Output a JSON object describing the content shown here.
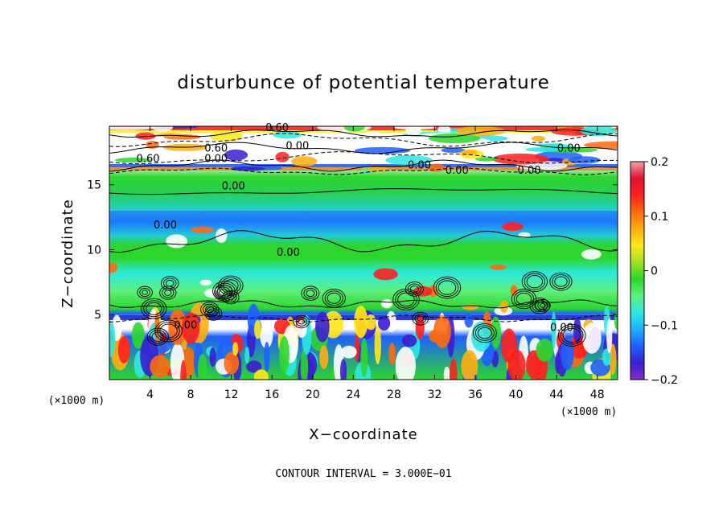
{
  "chart_data": {
    "type": "heatmap",
    "title": "disturbunce of potential temperature",
    "xlabel": "X−coordinate",
    "ylabel": "Z−coordinate",
    "x_unit_left": "(×1000 m)",
    "x_unit_right": "(×1000 m)",
    "xlim": [
      0,
      50
    ],
    "ylim": [
      0,
      19.5
    ],
    "x_ticks": [
      4,
      8,
      12,
      16,
      20,
      24,
      28,
      32,
      36,
      40,
      44,
      48
    ],
    "y_ticks": [
      5,
      10,
      15
    ],
    "colorbar": {
      "range": [
        -0.2,
        0.2
      ],
      "ticks": [
        {
          "value": 0.2,
          "label": "0.2"
        },
        {
          "value": 0.1,
          "label": "0.1"
        },
        {
          "value": 0,
          "label": "0"
        },
        {
          "value": -0.1,
          "label": "−0.1"
        },
        {
          "value": -0.2,
          "label": "−0.2"
        }
      ],
      "colors": [
        "#8a2bc8",
        "#3a1fd0",
        "#1e60ff",
        "#1fb0ff",
        "#2ce8e0",
        "#5ef07a",
        "#2cd62c",
        "#a0e020",
        "#ffe818",
        "#ffae10",
        "#ff6a10",
        "#ff2020",
        "#e01030",
        "#f4a0a8"
      ]
    },
    "contour_labels": [
      {
        "x": 16.5,
        "y": 19.2,
        "text": "0.60"
      },
      {
        "x": 18.5,
        "y": 17.8,
        "text": "0.00"
      },
      {
        "x": 10.5,
        "y": 17.6,
        "text": "0.60"
      },
      {
        "x": 10.5,
        "y": 16.8,
        "text": "0.00"
      },
      {
        "x": 3.8,
        "y": 16.8,
        "text": "0.60"
      },
      {
        "x": 45.2,
        "y": 17.6,
        "text": "0.00"
      },
      {
        "x": 30.5,
        "y": 16.3,
        "text": "0.00"
      },
      {
        "x": 34.2,
        "y": 15.9,
        "text": "0.00"
      },
      {
        "x": 41.3,
        "y": 15.9,
        "text": "0.00"
      },
      {
        "x": 12.2,
        "y": 14.7,
        "text": "0.00"
      },
      {
        "x": 5.5,
        "y": 11.7,
        "text": "0.00"
      },
      {
        "x": 17.6,
        "y": 9.6,
        "text": "0.00"
      },
      {
        "x": 7.5,
        "y": 4.0,
        "text": "0.00"
      },
      {
        "x": 44.5,
        "y": 3.8,
        "text": "0.00"
      }
    ],
    "footnote": "CONTOUR INTERVAL = 3.000E−01"
  }
}
